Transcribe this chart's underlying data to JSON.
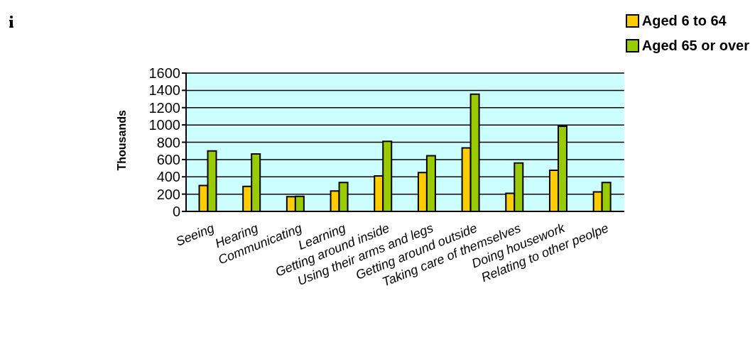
{
  "chart_data": {
    "type": "bar",
    "ylabel": "Thousands",
    "categories": [
      "Seeing",
      "Hearing",
      "Communicating",
      "Learning",
      "Getting around inside",
      "Using their arms and legs",
      "Getting around outside",
      "Taking care of themselves",
      "Doing housework",
      "Relating to other peolpe"
    ],
    "series": [
      {
        "name": "Aged 6 to 64",
        "color": "#ffcc00",
        "values": [
          300,
          290,
          170,
          235,
          410,
          450,
          735,
          210,
          475,
          225
        ]
      },
      {
        "name": "Aged 65 or over",
        "color": "#99cc00",
        "values": [
          700,
          665,
          175,
          335,
          810,
          645,
          1355,
          560,
          985,
          335
        ]
      }
    ],
    "ylim": [
      0,
      1600
    ],
    "yticks": [
      0,
      200,
      400,
      600,
      800,
      1000,
      1200,
      1400,
      1600
    ],
    "grid": "y",
    "legend": "top right"
  }
}
